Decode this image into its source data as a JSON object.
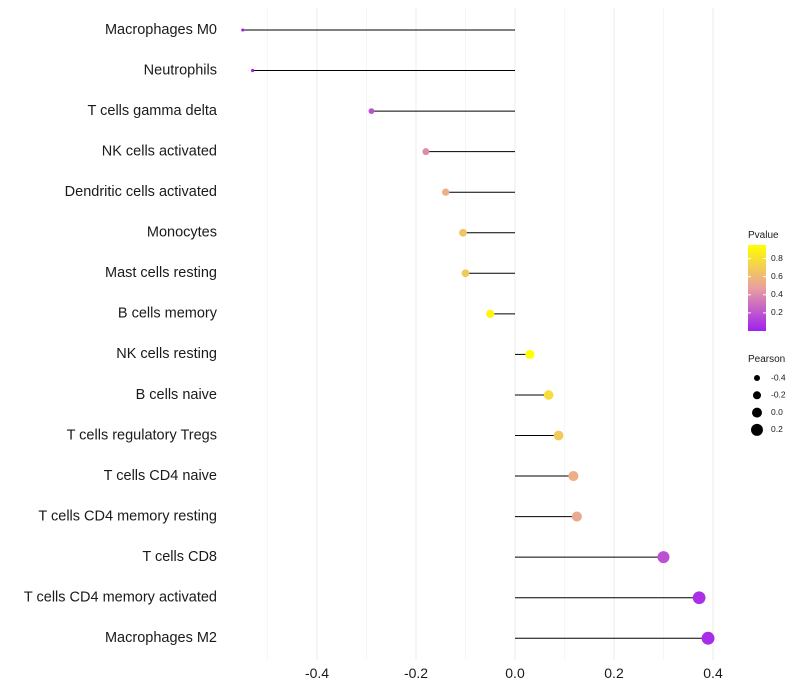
{
  "chart_data": {
    "type": "lollipop",
    "title": "",
    "xlabel": "",
    "ylabel": "",
    "xlim": [
      -0.56,
      0.42
    ],
    "x_ticks": [
      -0.4,
      -0.2,
      0.0,
      0.2,
      0.4
    ],
    "x_tick_labels": [
      "-0.4",
      "-0.2",
      "0.0",
      "0.2",
      "0.4"
    ],
    "grid": true,
    "baseline": 0.0,
    "categories": [
      "Macrophages M0",
      "Neutrophils",
      "T cells gamma delta",
      "NK cells activated",
      "Dendritic cells activated",
      "Monocytes",
      "Mast cells resting",
      "B cells memory",
      "NK cells resting",
      "B cells naive",
      "T cells regulatory  Tregs ",
      "T cells CD4 naive",
      "T cells CD4 memory resting",
      "T cells CD8",
      "T cells CD4 memory activated",
      "Macrophages M2"
    ],
    "pearson": [
      -0.55,
      -0.53,
      -0.29,
      -0.18,
      -0.14,
      -0.105,
      -0.1,
      -0.05,
      0.03,
      0.068,
      0.088,
      0.118,
      0.125,
      0.3,
      0.372,
      0.39
    ],
    "pvalue": [
      0.0,
      0.0,
      0.18,
      0.4,
      0.55,
      0.65,
      0.68,
      0.9,
      0.95,
      0.78,
      0.68,
      0.55,
      0.52,
      0.18,
      0.06,
      0.05
    ],
    "legend": {
      "position": "right",
      "color": {
        "title": "Pvalue",
        "ticks": [
          "0.8",
          "0.6",
          "0.4",
          "0.2"
        ],
        "tick_values": [
          0.8,
          0.6,
          0.4,
          0.2
        ],
        "range": [
          0.0,
          0.95
        ],
        "low_color": "#a020f0",
        "mid_color": "#e8a0a0",
        "high_color": "#ffff00"
      },
      "size": {
        "title": "Pearson",
        "ticks": [
          "-0.4",
          "-0.2",
          "0.0",
          "0.2"
        ],
        "tick_values": [
          -0.4,
          -0.2,
          0.0,
          0.2
        ]
      }
    }
  }
}
